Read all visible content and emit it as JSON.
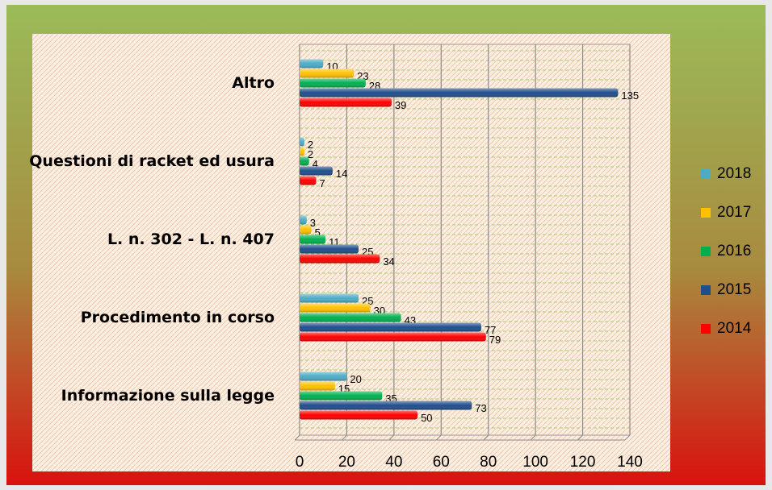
{
  "chart_data": {
    "type": "bar",
    "orientation": "horizontal",
    "categories": [
      "Altro",
      "Questioni di racket ed usura",
      "L. n. 302 - L. n. 407",
      "Procedimento in corso",
      "Informazione sulla legge"
    ],
    "series": [
      {
        "name": "2018",
        "color": "#4bacc6",
        "values": [
          10,
          2,
          3,
          25,
          20
        ]
      },
      {
        "name": "2017",
        "color": "#ffc000",
        "values": [
          23,
          2,
          5,
          30,
          15
        ]
      },
      {
        "name": "2016",
        "color": "#00b050",
        "values": [
          28,
          4,
          11,
          43,
          35
        ]
      },
      {
        "name": "2015",
        "color": "#1f4e8c",
        "values": [
          135,
          14,
          25,
          77,
          73
        ]
      },
      {
        "name": "2014",
        "color": "#ff0000",
        "values": [
          39,
          7,
          34,
          79,
          50
        ]
      }
    ],
    "xlim": [
      0,
      140
    ],
    "xticks": [
      0,
      20,
      40,
      60,
      80,
      100,
      120,
      140
    ],
    "grid": true,
    "legend": "right"
  }
}
